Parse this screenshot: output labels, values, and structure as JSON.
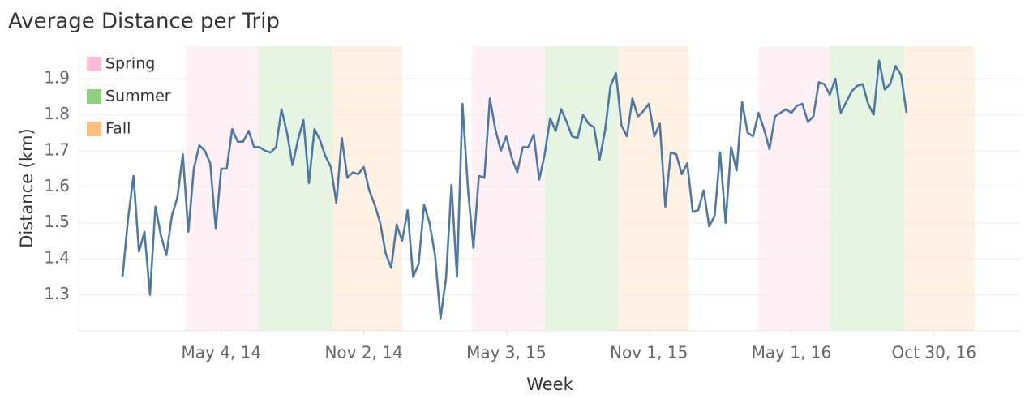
{
  "chart_data": {
    "type": "line",
    "title": "Average Distance per Trip",
    "x_label": "Week",
    "y_label": "Distance (km)",
    "color": "#4e79a7",
    "grid": true,
    "legend": "top-left",
    "xlim": [
      "2013-11-03",
      "2017-02-17"
    ],
    "xticks": [
      {
        "value": "2014-05-04",
        "label": "May 4, 14"
      },
      {
        "value": "2014-11-02",
        "label": "Nov 2, 14"
      },
      {
        "value": "2015-05-03",
        "label": "May 3, 15"
      },
      {
        "value": "2015-11-01",
        "label": "Nov 1, 15"
      },
      {
        "value": "2016-05-01",
        "label": "May 1, 16"
      },
      {
        "value": "2016-10-30",
        "label": "Oct 30, 16"
      }
    ],
    "ylim": [
      1.2,
      1.99
    ],
    "yticks": [
      1.3,
      1.4,
      1.5,
      1.6,
      1.7,
      1.8,
      1.9
    ],
    "seasons": [
      {
        "name": "Spring",
        "color": "#ffbcd3",
        "periods": [
          [
            "2014-03-20",
            "2014-06-21"
          ],
          [
            "2015-03-20",
            "2015-06-21"
          ],
          [
            "2016-03-20",
            "2016-06-20"
          ]
        ]
      },
      {
        "name": "Summer",
        "color": "#8cd17d",
        "periods": [
          [
            "2014-06-21",
            "2014-09-23"
          ],
          [
            "2015-06-21",
            "2015-09-23"
          ],
          [
            "2016-06-20",
            "2016-09-22"
          ]
        ]
      },
      {
        "name": "Fall",
        "color": "#ffbe7d",
        "periods": [
          [
            "2014-09-23",
            "2014-12-21"
          ],
          [
            "2015-09-23",
            "2015-12-22"
          ],
          [
            "2016-09-22",
            "2016-12-21"
          ]
        ]
      }
    ],
    "x": [
      "2013-12-29",
      "2014-01-05",
      "2014-01-12",
      "2014-01-19",
      "2014-01-26",
      "2014-02-02",
      "2014-02-09",
      "2014-02-16",
      "2014-02-23",
      "2014-03-02",
      "2014-03-09",
      "2014-03-16",
      "2014-03-23",
      "2014-03-30",
      "2014-04-06",
      "2014-04-13",
      "2014-04-20",
      "2014-04-27",
      "2014-05-04",
      "2014-05-11",
      "2014-05-18",
      "2014-05-25",
      "2014-06-01",
      "2014-06-08",
      "2014-06-15",
      "2014-06-22",
      "2014-06-29",
      "2014-07-06",
      "2014-07-13",
      "2014-07-20",
      "2014-07-27",
      "2014-08-03",
      "2014-08-10",
      "2014-08-17",
      "2014-08-24",
      "2014-08-31",
      "2014-09-07",
      "2014-09-14",
      "2014-09-21",
      "2014-09-28",
      "2014-10-05",
      "2014-10-12",
      "2014-10-19",
      "2014-10-26",
      "2014-11-02",
      "2014-11-09",
      "2014-11-16",
      "2014-11-23",
      "2014-11-30",
      "2014-12-07",
      "2014-12-14",
      "2014-12-21",
      "2014-12-28",
      "2015-01-04",
      "2015-01-11",
      "2015-01-18",
      "2015-01-25",
      "2015-02-01",
      "2015-02-08",
      "2015-02-15",
      "2015-02-22",
      "2015-03-01",
      "2015-03-08",
      "2015-03-15",
      "2015-03-22",
      "2015-03-29",
      "2015-04-05",
      "2015-04-12",
      "2015-04-19",
      "2015-04-26",
      "2015-05-03",
      "2015-05-10",
      "2015-05-17",
      "2015-05-24",
      "2015-05-31",
      "2015-06-07",
      "2015-06-14",
      "2015-06-21",
      "2015-06-28",
      "2015-07-05",
      "2015-07-12",
      "2015-07-19",
      "2015-07-26",
      "2015-08-02",
      "2015-08-09",
      "2015-08-16",
      "2015-08-23",
      "2015-08-30",
      "2015-09-06",
      "2015-09-13",
      "2015-09-20",
      "2015-09-27",
      "2015-10-04",
      "2015-10-11",
      "2015-10-18",
      "2015-10-25",
      "2015-11-01",
      "2015-11-08",
      "2015-11-15",
      "2015-11-22",
      "2015-11-29",
      "2015-12-06",
      "2015-12-13",
      "2015-12-20",
      "2015-12-27",
      "2016-01-03",
      "2016-01-10",
      "2016-01-17",
      "2016-01-24",
      "2016-01-31",
      "2016-02-07",
      "2016-02-14",
      "2016-02-21",
      "2016-02-28",
      "2016-03-06",
      "2016-03-13",
      "2016-03-20",
      "2016-03-27",
      "2016-04-03",
      "2016-04-10",
      "2016-04-17",
      "2016-04-24",
      "2016-05-01",
      "2016-05-08",
      "2016-05-15",
      "2016-05-22",
      "2016-05-29",
      "2016-06-05",
      "2016-06-12",
      "2016-06-19",
      "2016-06-26",
      "2016-07-03",
      "2016-07-10",
      "2016-07-17",
      "2016-07-24",
      "2016-07-31",
      "2016-08-07",
      "2016-08-14",
      "2016-08-21",
      "2016-08-28",
      "2016-09-04",
      "2016-09-11",
      "2016-09-18",
      "2016-09-25"
    ],
    "values": [
      1.35,
      1.51,
      1.63,
      1.42,
      1.475,
      1.3,
      1.545,
      1.465,
      1.41,
      1.52,
      1.57,
      1.69,
      1.475,
      1.65,
      1.715,
      1.7,
      1.665,
      1.485,
      1.65,
      1.65,
      1.76,
      1.725,
      1.725,
      1.755,
      1.71,
      1.71,
      1.7,
      1.695,
      1.71,
      1.815,
      1.75,
      1.66,
      1.73,
      1.785,
      1.61,
      1.76,
      1.73,
      1.685,
      1.655,
      1.555,
      1.735,
      1.625,
      1.64,
      1.635,
      1.655,
      1.59,
      1.55,
      1.5,
      1.415,
      1.375,
      1.495,
      1.45,
      1.535,
      1.35,
      1.385,
      1.55,
      1.5,
      1.41,
      1.235,
      1.345,
      1.605,
      1.35,
      1.83,
      1.595,
      1.43,
      1.63,
      1.625,
      1.845,
      1.76,
      1.7,
      1.74,
      1.68,
      1.64,
      1.71,
      1.71,
      1.745,
      1.62,
      1.69,
      1.79,
      1.755,
      1.815,
      1.78,
      1.74,
      1.735,
      1.8,
      1.775,
      1.765,
      1.675,
      1.755,
      1.88,
      1.915,
      1.77,
      1.74,
      1.845,
      1.795,
      1.81,
      1.83,
      1.74,
      1.775,
      1.545,
      1.695,
      1.69,
      1.635,
      1.665,
      1.53,
      1.535,
      1.59,
      1.49,
      1.52,
      1.695,
      1.5,
      1.71,
      1.645,
      1.835,
      1.75,
      1.74,
      1.805,
      1.76,
      1.705,
      1.795,
      1.805,
      1.815,
      1.805,
      1.825,
      1.83,
      1.78,
      1.795,
      1.89,
      1.885,
      1.855,
      1.9,
      1.805,
      1.835,
      1.865,
      1.88,
      1.885,
      1.83,
      1.8,
      1.95,
      1.87,
      1.885,
      1.935,
      1.91,
      1.805
    ]
  }
}
